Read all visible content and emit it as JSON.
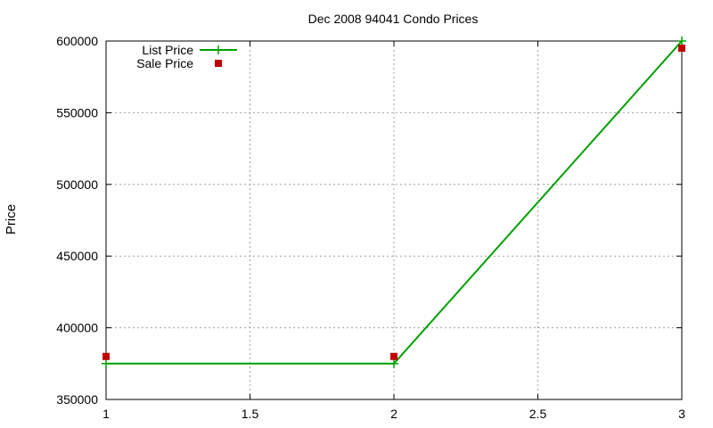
{
  "chart_data": {
    "type": "line",
    "title": "Dec 2008 94041 Condo Prices",
    "xlabel": "",
    "ylabel": "Price",
    "xlim": [
      1,
      3
    ],
    "ylim": [
      350000,
      600000
    ],
    "x_ticks": [
      "1",
      "1.5",
      "2",
      "2.5",
      "3"
    ],
    "y_ticks": [
      "350000",
      "400000",
      "450000",
      "500000",
      "550000",
      "600000"
    ],
    "grid": true,
    "legend_position": "top-left",
    "series": [
      {
        "name": "List Price",
        "style": "linespoints",
        "marker": "plus",
        "color": "#00a000",
        "x": [
          1,
          2,
          3
        ],
        "y": [
          375000,
          375000,
          600000
        ]
      },
      {
        "name": "Sale Price",
        "style": "points",
        "marker": "square",
        "color": "#c00000",
        "x": [
          1,
          2,
          3
        ],
        "y": [
          380000,
          380000,
          595000
        ]
      }
    ]
  }
}
